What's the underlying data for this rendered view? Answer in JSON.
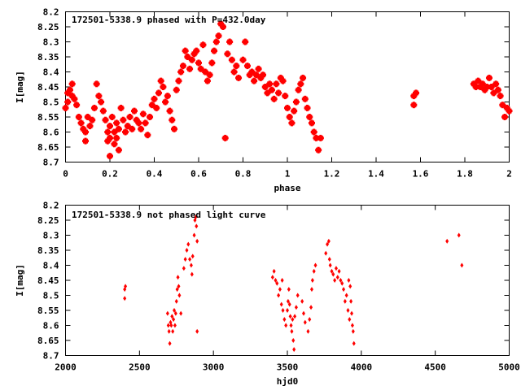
{
  "chart_data": [
    {
      "type": "scatter",
      "title": "172501-5338.9 phased with P=432.0day",
      "xlabel": "phase",
      "ylabel": "I[mag]",
      "xlim": [
        0,
        2
      ],
      "ylim": [
        8.7,
        8.2
      ],
      "y_reversed": true,
      "xticks": [
        "0",
        "0.2",
        "0.4",
        "0.6",
        "0.8",
        "1",
        "1.2",
        "1.4",
        "1.6",
        "1.8",
        "2"
      ],
      "yticks": [
        "8.2",
        "8.25",
        "8.3",
        "8.35",
        "8.4",
        "8.45",
        "8.5",
        "8.55",
        "8.6",
        "8.65",
        "8.7"
      ],
      "marker_color": "#ff0000",
      "grid": false,
      "points": [
        [
          0.0,
          8.52
        ],
        [
          0.01,
          8.47
        ],
        [
          0.01,
          8.5
        ],
        [
          0.02,
          8.46
        ],
        [
          0.03,
          8.44
        ],
        [
          0.03,
          8.48
        ],
        [
          0.04,
          8.49
        ],
        [
          0.05,
          8.51
        ],
        [
          0.06,
          8.55
        ],
        [
          0.07,
          8.57
        ],
        [
          0.08,
          8.59
        ],
        [
          0.09,
          8.6
        ],
        [
          0.09,
          8.63
        ],
        [
          0.1,
          8.55
        ],
        [
          0.11,
          8.58
        ],
        [
          0.12,
          8.56
        ],
        [
          0.13,
          8.52
        ],
        [
          0.14,
          8.44
        ],
        [
          0.15,
          8.48
        ],
        [
          0.16,
          8.5
        ],
        [
          0.17,
          8.53
        ],
        [
          0.18,
          8.56
        ],
        [
          0.19,
          8.6
        ],
        [
          0.19,
          8.63
        ],
        [
          0.2,
          8.58
        ],
        [
          0.2,
          8.62
        ],
        [
          0.2,
          8.68
        ],
        [
          0.21,
          8.55
        ],
        [
          0.22,
          8.6
        ],
        [
          0.22,
          8.64
        ],
        [
          0.23,
          8.57
        ],
        [
          0.23,
          8.62
        ],
        [
          0.24,
          8.66
        ],
        [
          0.24,
          8.59
        ],
        [
          0.25,
          8.52
        ],
        [
          0.26,
          8.56
        ],
        [
          0.27,
          8.6
        ],
        [
          0.28,
          8.58
        ],
        [
          0.29,
          8.55
        ],
        [
          0.3,
          8.59
        ],
        [
          0.31,
          8.53
        ],
        [
          0.32,
          8.56
        ],
        [
          0.33,
          8.57
        ],
        [
          0.34,
          8.59
        ],
        [
          0.35,
          8.54
        ],
        [
          0.36,
          8.57
        ],
        [
          0.37,
          8.61
        ],
        [
          0.38,
          8.55
        ],
        [
          0.39,
          8.51
        ],
        [
          0.4,
          8.49
        ],
        [
          0.41,
          8.52
        ],
        [
          0.42,
          8.47
        ],
        [
          0.43,
          8.43
        ],
        [
          0.44,
          8.45
        ],
        [
          0.45,
          8.5
        ],
        [
          0.46,
          8.48
        ],
        [
          0.47,
          8.53
        ],
        [
          0.48,
          8.56
        ],
        [
          0.49,
          8.59
        ],
        [
          0.5,
          8.46
        ],
        [
          0.51,
          8.43
        ],
        [
          0.52,
          8.4
        ],
        [
          0.53,
          8.38
        ],
        [
          0.54,
          8.33
        ],
        [
          0.55,
          8.35
        ],
        [
          0.56,
          8.39
        ],
        [
          0.57,
          8.36
        ],
        [
          0.58,
          8.34
        ],
        [
          0.59,
          8.33
        ],
        [
          0.6,
          8.37
        ],
        [
          0.61,
          8.39
        ],
        [
          0.62,
          8.31
        ],
        [
          0.63,
          8.4
        ],
        [
          0.64,
          8.43
        ],
        [
          0.65,
          8.41
        ],
        [
          0.66,
          8.37
        ],
        [
          0.67,
          8.33
        ],
        [
          0.68,
          8.3
        ],
        [
          0.69,
          8.28
        ],
        [
          0.7,
          8.24
        ],
        [
          0.71,
          8.25
        ],
        [
          0.72,
          8.62
        ],
        [
          0.73,
          8.34
        ],
        [
          0.74,
          8.3
        ],
        [
          0.75,
          8.36
        ],
        [
          0.76,
          8.4
        ],
        [
          0.77,
          8.38
        ],
        [
          0.78,
          8.42
        ],
        [
          0.8,
          8.36
        ],
        [
          0.81,
          8.3
        ],
        [
          0.82,
          8.38
        ],
        [
          0.83,
          8.41
        ],
        [
          0.84,
          8.4
        ],
        [
          0.85,
          8.43
        ],
        [
          0.86,
          8.41
        ],
        [
          0.87,
          8.39
        ],
        [
          0.88,
          8.42
        ],
        [
          0.89,
          8.41
        ],
        [
          0.9,
          8.45
        ],
        [
          0.91,
          8.47
        ],
        [
          0.92,
          8.44
        ],
        [
          0.93,
          8.46
        ],
        [
          0.94,
          8.49
        ],
        [
          0.95,
          8.44
        ],
        [
          0.96,
          8.47
        ],
        [
          0.97,
          8.42
        ],
        [
          0.98,
          8.43
        ],
        [
          0.99,
          8.48
        ],
        [
          1.0,
          8.52
        ],
        [
          1.01,
          8.55
        ],
        [
          1.02,
          8.57
        ],
        [
          1.03,
          8.53
        ],
        [
          1.04,
          8.5
        ],
        [
          1.05,
          8.46
        ],
        [
          1.06,
          8.44
        ],
        [
          1.07,
          8.42
        ],
        [
          1.08,
          8.49
        ],
        [
          1.09,
          8.52
        ],
        [
          1.1,
          8.55
        ],
        [
          1.11,
          8.57
        ],
        [
          1.12,
          8.6
        ],
        [
          1.13,
          8.62
        ],
        [
          1.14,
          8.66
        ],
        [
          1.15,
          8.62
        ],
        [
          1.57,
          8.48
        ],
        [
          1.57,
          8.51
        ],
        [
          1.58,
          8.47
        ],
        [
          1.84,
          8.44
        ],
        [
          1.85,
          8.45
        ],
        [
          1.86,
          8.43
        ],
        [
          1.87,
          8.45
        ],
        [
          1.88,
          8.44
        ],
        [
          1.89,
          8.46
        ],
        [
          1.9,
          8.45
        ],
        [
          1.91,
          8.42
        ],
        [
          1.92,
          8.45
        ],
        [
          1.93,
          8.47
        ],
        [
          1.94,
          8.44
        ],
        [
          1.95,
          8.46
        ],
        [
          1.96,
          8.48
        ],
        [
          1.97,
          8.51
        ],
        [
          1.98,
          8.55
        ],
        [
          1.99,
          8.52
        ],
        [
          2.0,
          8.53
        ]
      ]
    },
    {
      "type": "scatter",
      "title": "172501-5338.9 not phased light curve",
      "xlabel": "hjd0",
      "ylabel": "I[mag]",
      "xlim": [
        2000,
        5000
      ],
      "ylim": [
        8.7,
        8.2
      ],
      "y_reversed": true,
      "xticks": [
        "2000",
        "2500",
        "3000",
        "3500",
        "4000",
        "4500",
        "5000"
      ],
      "yticks": [
        "8.2",
        "8.25",
        "8.3",
        "8.35",
        "8.4",
        "8.45",
        "8.5",
        "8.55",
        "8.6",
        "8.65",
        "8.7"
      ],
      "marker_color": "#ff0000",
      "grid": false,
      "points": [
        [
          2400,
          8.48
        ],
        [
          2400,
          8.51
        ],
        [
          2405,
          8.47
        ],
        [
          2690,
          8.56
        ],
        [
          2695,
          8.6
        ],
        [
          2700,
          8.62
        ],
        [
          2705,
          8.66
        ],
        [
          2710,
          8.59
        ],
        [
          2715,
          8.6
        ],
        [
          2720,
          8.57
        ],
        [
          2725,
          8.62
        ],
        [
          2730,
          8.58
        ],
        [
          2735,
          8.55
        ],
        [
          2740,
          8.6
        ],
        [
          2745,
          8.56
        ],
        [
          2750,
          8.52
        ],
        [
          2755,
          8.48
        ],
        [
          2760,
          8.44
        ],
        [
          2765,
          8.47
        ],
        [
          2770,
          8.5
        ],
        [
          2780,
          8.56
        ],
        [
          2800,
          8.41
        ],
        [
          2810,
          8.38
        ],
        [
          2820,
          8.35
        ],
        [
          2830,
          8.33
        ],
        [
          2840,
          8.38
        ],
        [
          2850,
          8.4
        ],
        [
          2855,
          8.43
        ],
        [
          2860,
          8.37
        ],
        [
          2870,
          8.3
        ],
        [
          2875,
          8.25
        ],
        [
          2880,
          8.24
        ],
        [
          2885,
          8.27
        ],
        [
          2890,
          8.32
        ],
        [
          2890,
          8.62
        ],
        [
          3400,
          8.44
        ],
        [
          3410,
          8.42
        ],
        [
          3420,
          8.45
        ],
        [
          3430,
          8.46
        ],
        [
          3440,
          8.5
        ],
        [
          3450,
          8.48
        ],
        [
          3460,
          8.53
        ],
        [
          3465,
          8.45
        ],
        [
          3470,
          8.55
        ],
        [
          3480,
          8.58
        ],
        [
          3490,
          8.6
        ],
        [
          3500,
          8.55
        ],
        [
          3505,
          8.52
        ],
        [
          3510,
          8.48
        ],
        [
          3515,
          8.53
        ],
        [
          3520,
          8.57
        ],
        [
          3525,
          8.6
        ],
        [
          3530,
          8.62
        ],
        [
          3535,
          8.58
        ],
        [
          3540,
          8.65
        ],
        [
          3545,
          8.68
        ],
        [
          3550,
          8.57
        ],
        [
          3560,
          8.54
        ],
        [
          3570,
          8.5
        ],
        [
          3600,
          8.52
        ],
        [
          3610,
          8.56
        ],
        [
          3620,
          8.59
        ],
        [
          3640,
          8.62
        ],
        [
          3650,
          8.58
        ],
        [
          3660,
          8.54
        ],
        [
          3665,
          8.48
        ],
        [
          3670,
          8.45
        ],
        [
          3680,
          8.42
        ],
        [
          3690,
          8.4
        ],
        [
          3760,
          8.36
        ],
        [
          3770,
          8.33
        ],
        [
          3780,
          8.32
        ],
        [
          3785,
          8.38
        ],
        [
          3790,
          8.4
        ],
        [
          3800,
          8.42
        ],
        [
          3810,
          8.43
        ],
        [
          3820,
          8.45
        ],
        [
          3830,
          8.41
        ],
        [
          3840,
          8.44
        ],
        [
          3850,
          8.42
        ],
        [
          3860,
          8.45
        ],
        [
          3870,
          8.46
        ],
        [
          3880,
          8.48
        ],
        [
          3890,
          8.52
        ],
        [
          3900,
          8.5
        ],
        [
          3910,
          8.55
        ],
        [
          3915,
          8.45
        ],
        [
          3920,
          8.58
        ],
        [
          3925,
          8.47
        ],
        [
          3930,
          8.52
        ],
        [
          3935,
          8.56
        ],
        [
          3940,
          8.6
        ],
        [
          3945,
          8.62
        ],
        [
          3950,
          8.66
        ],
        [
          4580,
          8.32
        ],
        [
          4660,
          8.3
        ],
        [
          4680,
          8.4
        ]
      ]
    }
  ]
}
